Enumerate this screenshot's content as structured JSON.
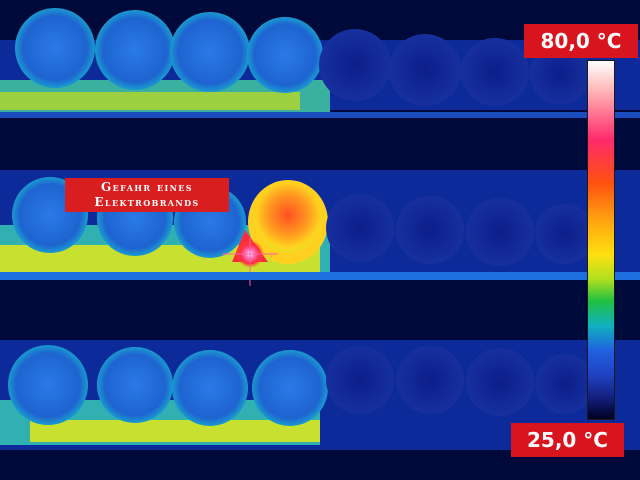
{
  "scale": {
    "max_label": "80,0 °C",
    "min_label": "25,0 °C",
    "max_color": "#d8141e",
    "palette": "ironbow"
  },
  "annotation": {
    "line1": "Gefahr eines",
    "line2": "Elektrobrands",
    "box_color": "#d81e1e"
  },
  "colors": {
    "background": "#000a3a",
    "cool": "#1e6ee0",
    "warm": "#e8e020",
    "hot": "#ff8020",
    "hotspot": "#ff2a80"
  }
}
